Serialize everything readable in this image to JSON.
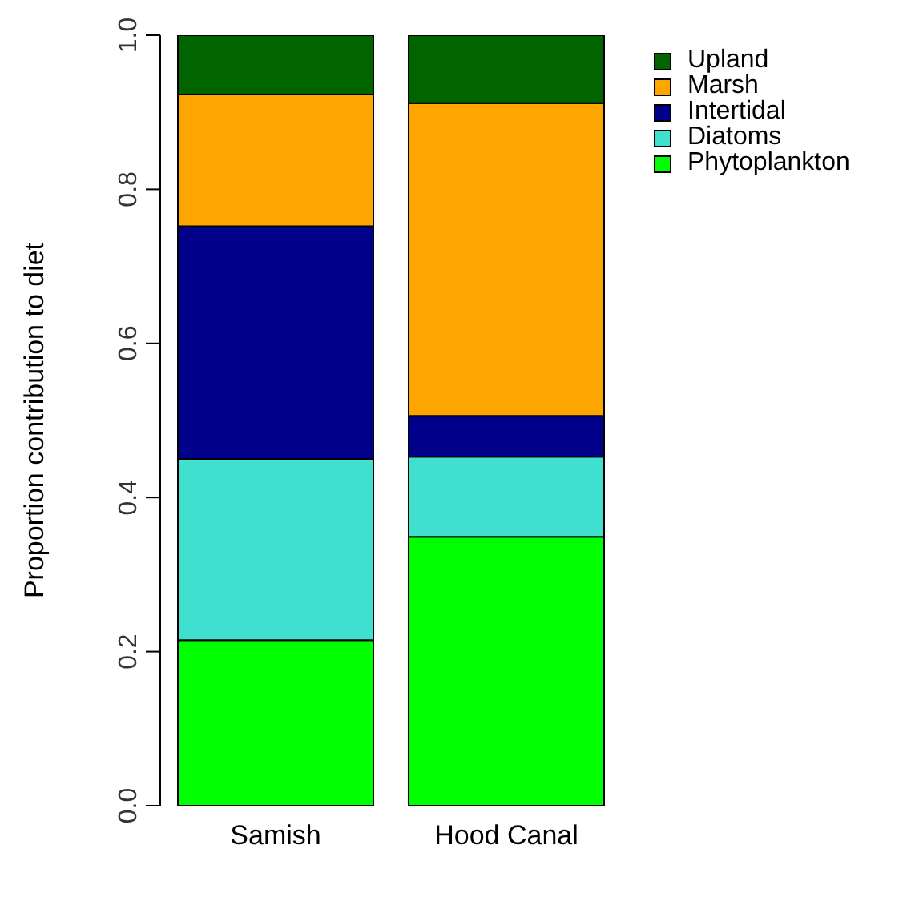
{
  "chart_data": {
    "type": "bar",
    "stacked": true,
    "ylabel": "Proportion contribution to diet",
    "categories": [
      "Samish",
      "Hood Canal"
    ],
    "ylim": [
      0,
      1
    ],
    "yticks": [
      {
        "value": 0,
        "label": "0.0"
      },
      {
        "value": 0.2,
        "label": "0.2"
      },
      {
        "value": 0.4,
        "label": "0.4"
      },
      {
        "value": 0.6,
        "label": "0.6"
      },
      {
        "value": 0.8,
        "label": "0.8"
      },
      {
        "value": 1,
        "label": "1.0"
      }
    ],
    "legend": "top right",
    "grid": false,
    "series": [
      {
        "name": "Phytoplankton",
        "color": "#00ff00",
        "values": [
          0.215,
          0.349
        ]
      },
      {
        "name": "Diatoms",
        "color": "#40e0d0",
        "values": [
          0.235,
          0.104
        ]
      },
      {
        "name": "Intertidal",
        "color": "#00008b",
        "values": [
          0.302,
          0.053
        ]
      },
      {
        "name": "Marsh",
        "color": "#ffa500",
        "values": [
          0.171,
          0.406
        ]
      },
      {
        "name": "Upland",
        "color": "#006400",
        "values": [
          0.077,
          0.088
        ]
      }
    ]
  }
}
